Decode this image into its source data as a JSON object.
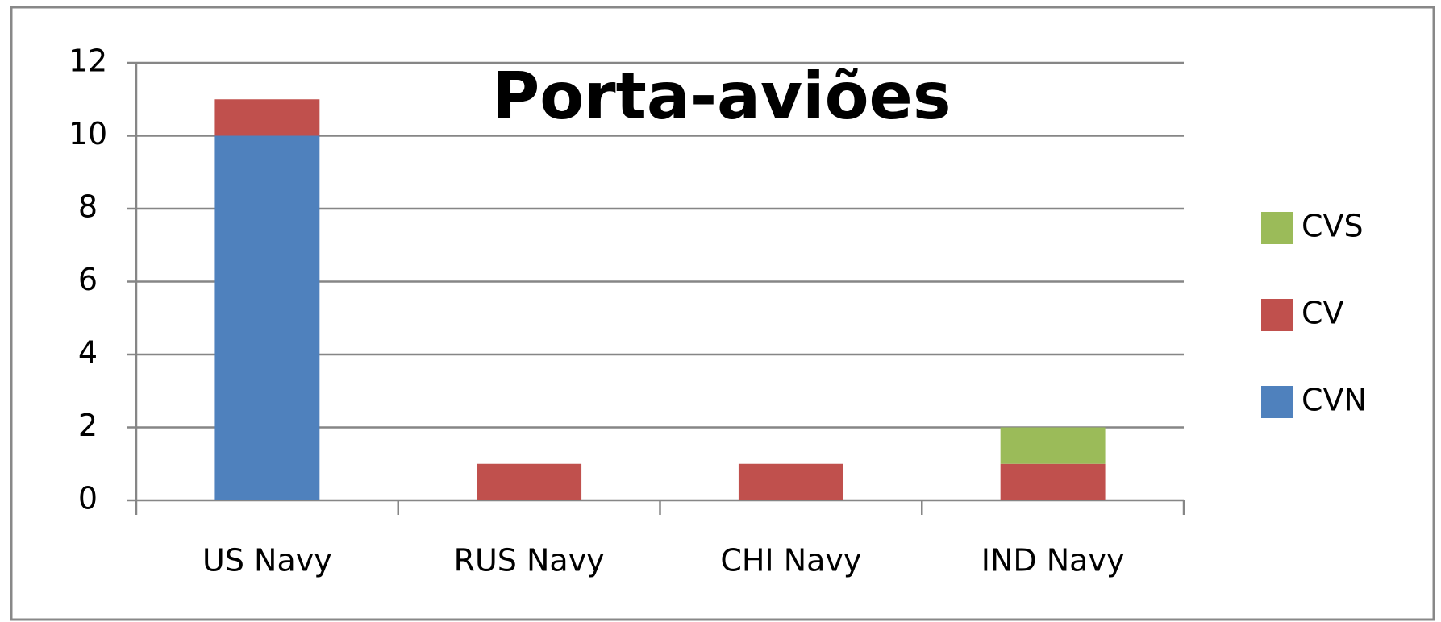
{
  "chart_data": {
    "type": "bar",
    "stacked": true,
    "title": "Porta-aviões",
    "categories": [
      "US Navy",
      "RUS Navy",
      "CHI Navy",
      "IND Navy"
    ],
    "series": [
      {
        "name": "CVN",
        "color": "#4f81bd",
        "values": [
          10,
          0,
          0,
          0
        ]
      },
      {
        "name": "CV",
        "color": "#c0504d",
        "values": [
          1,
          1,
          1,
          1
        ]
      },
      {
        "name": "CVS",
        "color": "#9bbb59",
        "values": [
          0,
          0,
          0,
          1
        ]
      }
    ],
    "ylim": [
      0,
      12
    ],
    "yticks": [
      0,
      2,
      4,
      6,
      8,
      10,
      12
    ],
    "grid": true,
    "legend": "right"
  }
}
